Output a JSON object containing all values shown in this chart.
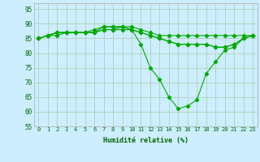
{
  "background_color": "#cceeff",
  "grid_color": "#aaccaa",
  "line_color": "#00aa00",
  "xlabel": "Humidité relative (%)",
  "xlim": [
    -0.5,
    23.5
  ],
  "ylim": [
    55,
    97
  ],
  "yticks": [
    55,
    60,
    65,
    70,
    75,
    80,
    85,
    90,
    95
  ],
  "xticks": [
    0,
    1,
    2,
    3,
    4,
    5,
    6,
    7,
    8,
    9,
    10,
    11,
    12,
    13,
    14,
    15,
    16,
    17,
    18,
    19,
    20,
    21,
    22,
    23
  ],
  "line1": [
    85,
    86,
    87,
    87,
    87,
    87,
    88,
    89,
    89,
    89,
    89,
    88,
    87,
    86,
    86,
    86,
    86,
    86,
    86,
    86,
    86,
    86,
    86,
    86
  ],
  "line2": [
    85,
    86,
    87,
    87,
    87,
    87,
    87,
    89,
    89,
    89,
    88,
    83,
    75,
    71,
    65,
    61,
    62,
    64,
    73,
    77,
    81,
    82,
    85,
    86
  ],
  "line3": [
    85,
    86,
    87,
    87,
    87,
    87,
    87,
    88,
    88,
    88,
    88,
    87,
    86,
    85,
    84,
    83,
    83,
    83,
    83,
    82,
    82,
    83,
    85,
    86
  ],
  "line4": [
    85,
    86,
    86,
    87,
    87,
    87,
    87,
    88,
    88,
    89,
    88,
    87,
    86,
    85,
    84,
    83,
    83,
    83,
    83,
    82,
    82,
    83,
    85,
    86
  ],
  "tick_fontsize": 5.0,
  "xlabel_fontsize": 6.0,
  "marker_size": 2.2,
  "line_width": 0.8
}
